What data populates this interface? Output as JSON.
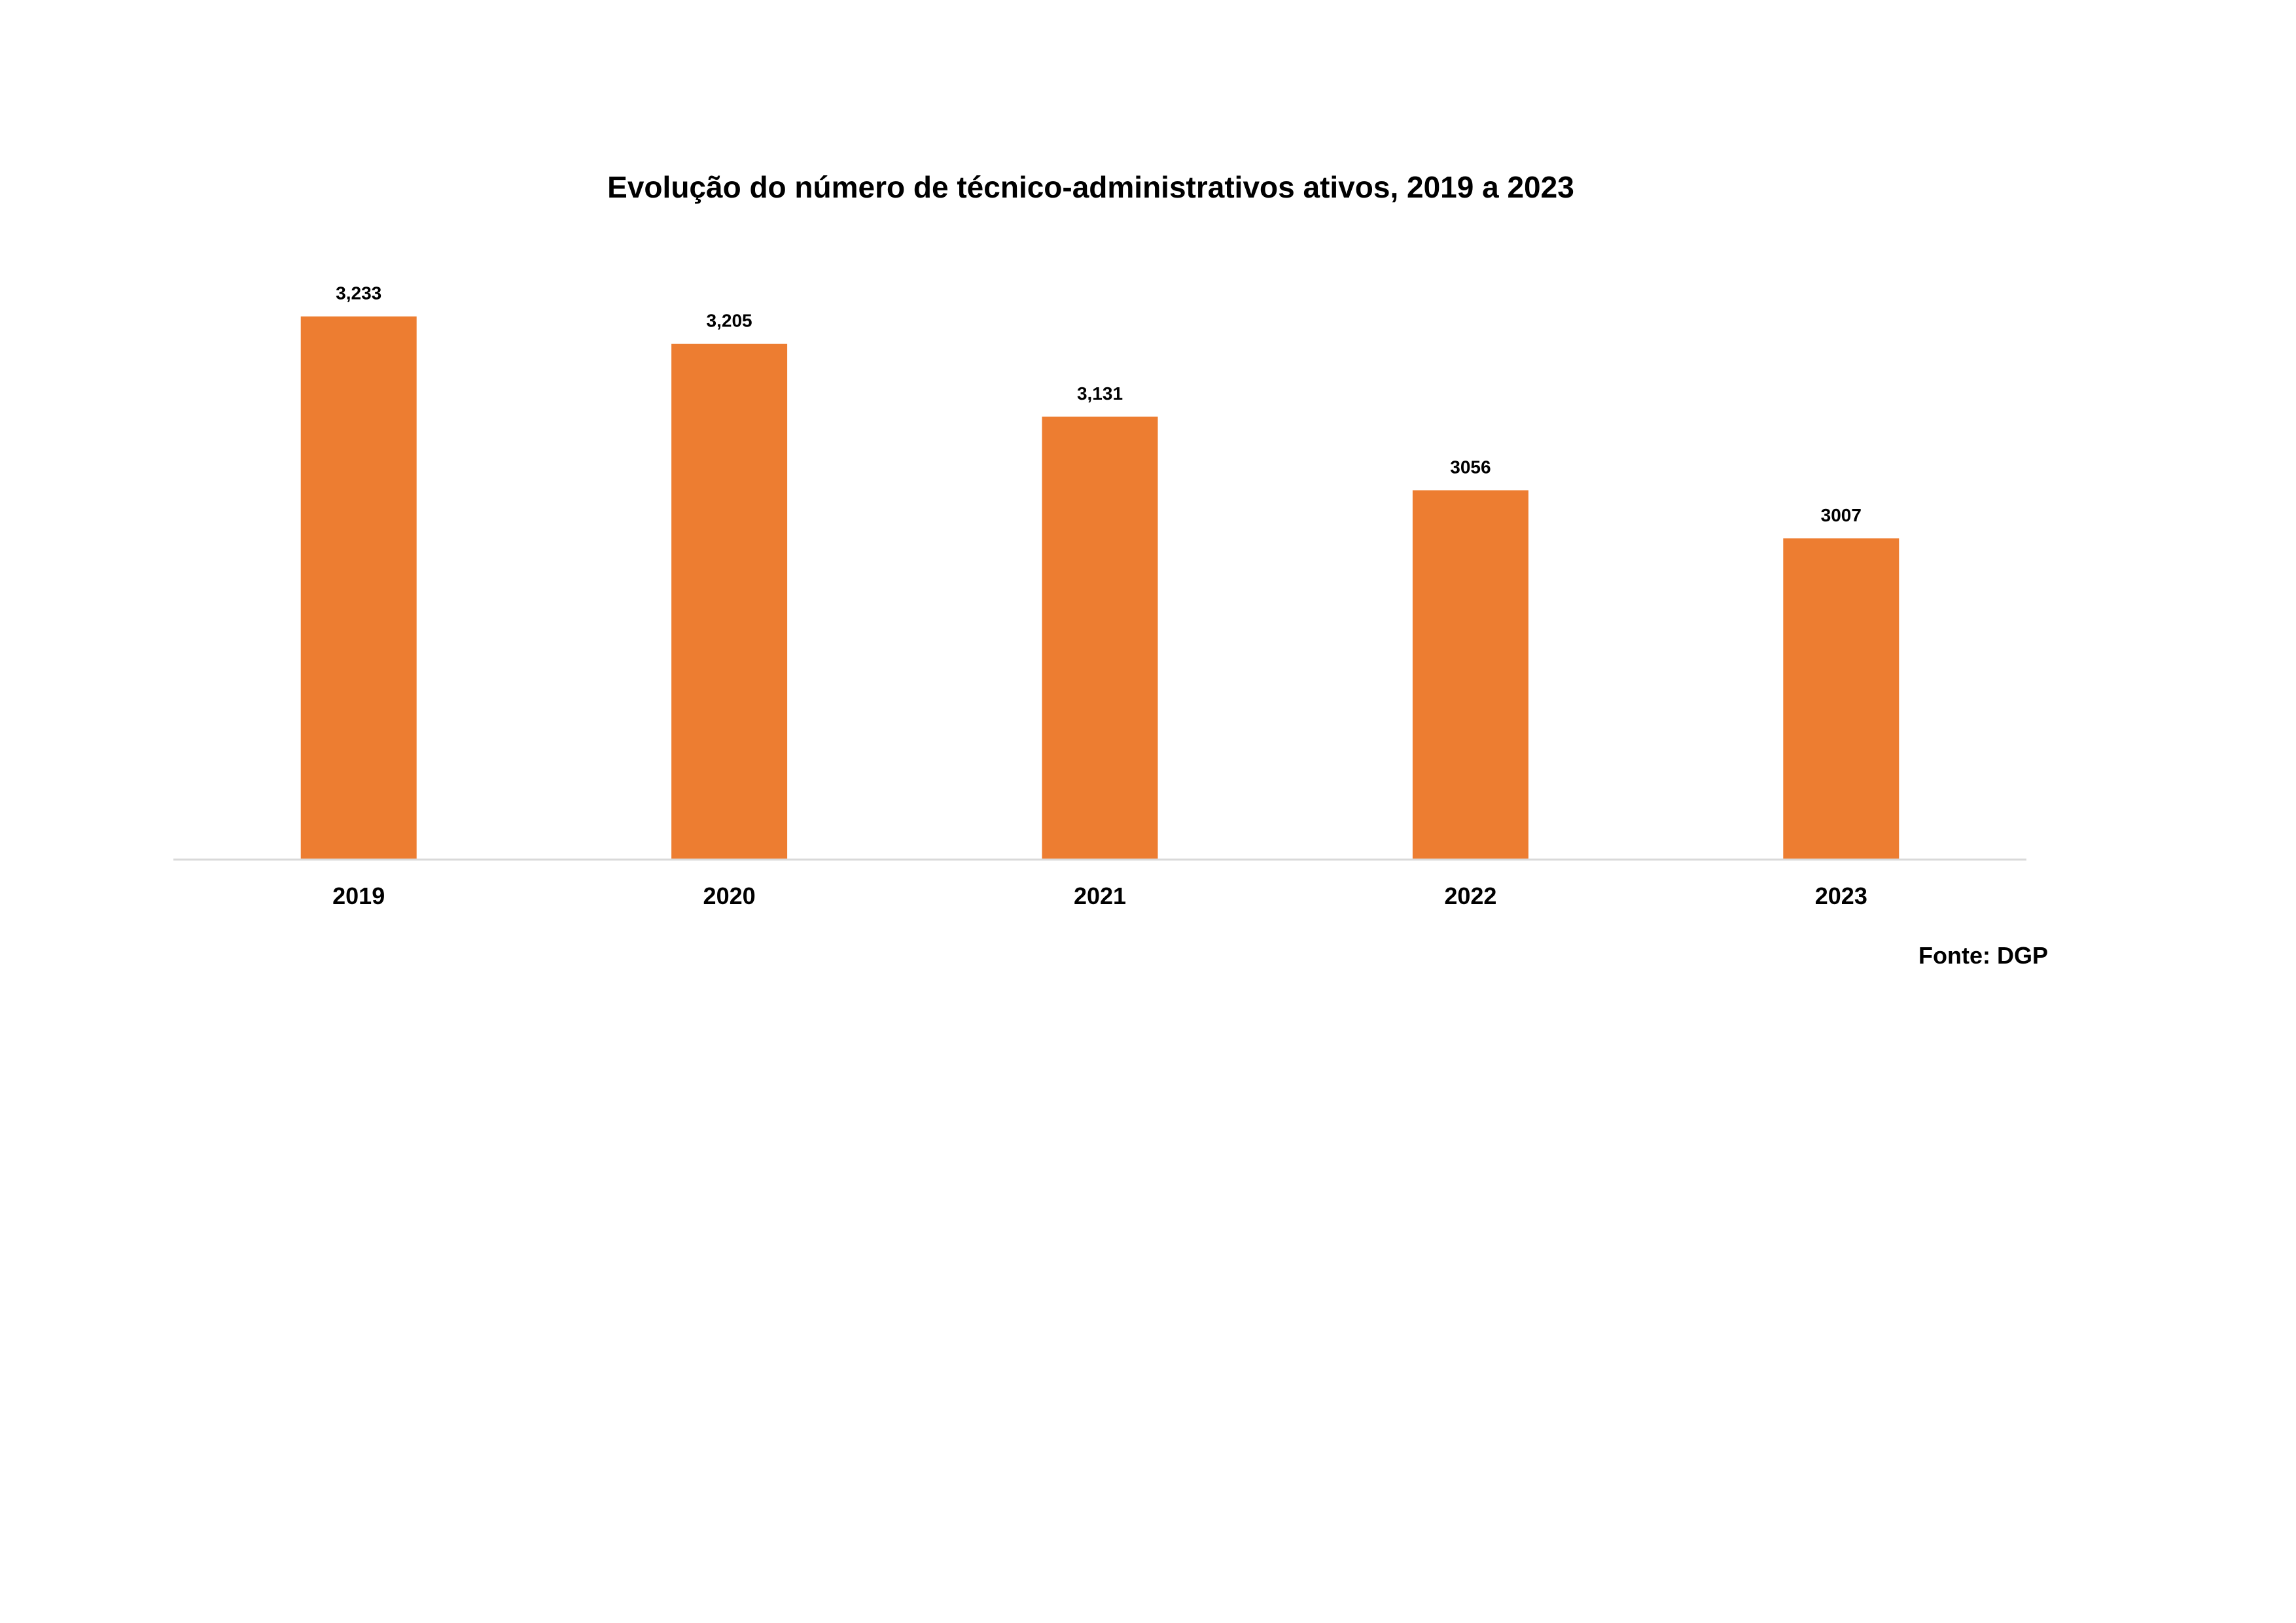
{
  "chart_data": {
    "type": "bar",
    "title": "Evolução do número de técnico-administrativos ativos, 2019 a 2023",
    "categories": [
      "2019",
      "2020",
      "2021",
      "2022",
      "2023"
    ],
    "values": [
      3233,
      3205,
      3131,
      3056,
      3007
    ],
    "data_labels": [
      "3,233",
      "3,205",
      "3,131",
      "3056",
      "3007"
    ],
    "xlabel": "",
    "ylabel": "",
    "grid": false,
    "legend": "none",
    "bar_color": "#ED7D31",
    "axis_color": "#D9D9D9",
    "source": "Fonte: DGP"
  }
}
